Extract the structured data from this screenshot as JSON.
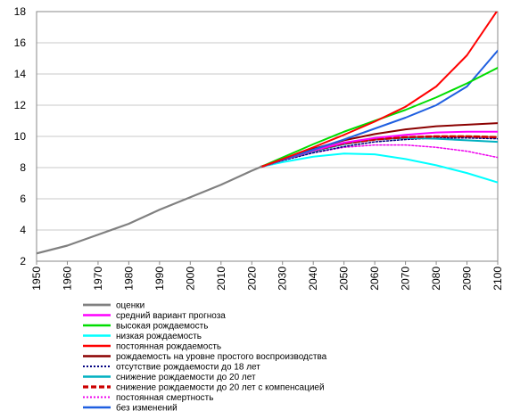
{
  "chart_data": {
    "type": "line",
    "title": "",
    "xlabel": "",
    "ylabel": "",
    "xlim": [
      1950,
      2100
    ],
    "ylim": [
      2,
      18
    ],
    "x_ticks": [
      "1950",
      "1960",
      "1970",
      "1980",
      "1990",
      "2000",
      "2010",
      "2020",
      "2030",
      "2040",
      "2050",
      "2060",
      "2070",
      "2080",
      "2090",
      "2100"
    ],
    "y_ticks": [
      "2",
      "4",
      "6",
      "8",
      "10",
      "12",
      "14",
      "16",
      "18"
    ],
    "grid": "horizontal",
    "legend_position": "bottom",
    "series": [
      {
        "name": "оценки",
        "color": "#808080",
        "dash": "solid",
        "width": 2.2,
        "points": [
          [
            1950,
            2.5
          ],
          [
            1960,
            3.0
          ],
          [
            1970,
            3.7
          ],
          [
            1980,
            4.4
          ],
          [
            1990,
            5.3
          ],
          [
            2000,
            6.1
          ],
          [
            2010,
            6.9
          ],
          [
            2020,
            7.8
          ],
          [
            2023,
            8.05
          ]
        ]
      },
      {
        "name": "средний вариант прогноза",
        "color": "#ff00ff",
        "dash": "solid",
        "width": 2,
        "points": [
          [
            2023,
            8.05
          ],
          [
            2030,
            8.5
          ],
          [
            2040,
            9.1
          ],
          [
            2050,
            9.6
          ],
          [
            2060,
            9.9
          ],
          [
            2070,
            10.1
          ],
          [
            2080,
            10.25
          ],
          [
            2090,
            10.3
          ],
          [
            2100,
            10.3
          ]
        ]
      },
      {
        "name": "высокая рождаемость",
        "color": "#00dd00",
        "dash": "solid",
        "width": 2,
        "points": [
          [
            2023,
            8.05
          ],
          [
            2030,
            8.65
          ],
          [
            2040,
            9.5
          ],
          [
            2050,
            10.3
          ],
          [
            2060,
            11.0
          ],
          [
            2070,
            11.7
          ],
          [
            2080,
            12.5
          ],
          [
            2090,
            13.4
          ],
          [
            2100,
            14.4
          ]
        ]
      },
      {
        "name": "низкая рождаемость",
        "color": "#00ffff",
        "dash": "solid",
        "width": 2,
        "points": [
          [
            2023,
            8.05
          ],
          [
            2030,
            8.35
          ],
          [
            2040,
            8.7
          ],
          [
            2050,
            8.9
          ],
          [
            2060,
            8.85
          ],
          [
            2070,
            8.55
          ],
          [
            2080,
            8.15
          ],
          [
            2090,
            7.65
          ],
          [
            2100,
            7.05
          ]
        ]
      },
      {
        "name": "постоянная рождаемость",
        "color": "#ff0000",
        "dash": "solid",
        "width": 2,
        "points": [
          [
            2023,
            8.05
          ],
          [
            2030,
            8.55
          ],
          [
            2040,
            9.3
          ],
          [
            2050,
            10.1
          ],
          [
            2060,
            10.95
          ],
          [
            2070,
            11.9
          ],
          [
            2080,
            13.2
          ],
          [
            2090,
            15.2
          ],
          [
            2100,
            18.1
          ]
        ]
      },
      {
        "name": "рождаемость на уровне простого воспроизводства",
        "color": "#8b0000",
        "dash": "solid",
        "width": 2,
        "points": [
          [
            2023,
            8.05
          ],
          [
            2030,
            8.55
          ],
          [
            2040,
            9.2
          ],
          [
            2050,
            9.75
          ],
          [
            2060,
            10.15
          ],
          [
            2070,
            10.45
          ],
          [
            2080,
            10.65
          ],
          [
            2090,
            10.75
          ],
          [
            2100,
            10.85
          ]
        ]
      },
      {
        "name": "отсутствие рождаемости до 18 лет",
        "color": "#000080",
        "dash": "2,2",
        "width": 1.5,
        "points": [
          [
            2023,
            8.05
          ],
          [
            2030,
            8.45
          ],
          [
            2040,
            8.95
          ],
          [
            2050,
            9.35
          ],
          [
            2060,
            9.65
          ],
          [
            2070,
            9.8
          ],
          [
            2080,
            9.9
          ],
          [
            2090,
            9.9
          ],
          [
            2100,
            9.85
          ]
        ]
      },
      {
        "name": "снижение рождаемости до 20 лет",
        "color": "#00b0c0",
        "dash": "solid",
        "width": 2,
        "points": [
          [
            2023,
            8.05
          ],
          [
            2030,
            8.5
          ],
          [
            2040,
            9.05
          ],
          [
            2050,
            9.5
          ],
          [
            2060,
            9.8
          ],
          [
            2070,
            9.9
          ],
          [
            2080,
            9.85
          ],
          [
            2090,
            9.75
          ],
          [
            2100,
            9.65
          ]
        ]
      },
      {
        "name": "снижение рождаемости до 20 лет с компенсацией",
        "color": "#cc0000",
        "dash": "6,3",
        "width": 2.6,
        "points": [
          [
            2023,
            8.05
          ],
          [
            2030,
            8.5
          ],
          [
            2040,
            9.1
          ],
          [
            2050,
            9.55
          ],
          [
            2060,
            9.8
          ],
          [
            2070,
            9.95
          ],
          [
            2080,
            10.0
          ],
          [
            2090,
            10.0
          ],
          [
            2100,
            9.95
          ]
        ]
      },
      {
        "name": "постоянная смертность",
        "color": "#ee00ee",
        "dash": "2,2",
        "width": 1.5,
        "points": [
          [
            2023,
            8.05
          ],
          [
            2030,
            8.45
          ],
          [
            2040,
            8.95
          ],
          [
            2050,
            9.3
          ],
          [
            2060,
            9.45
          ],
          [
            2070,
            9.45
          ],
          [
            2080,
            9.3
          ],
          [
            2090,
            9.05
          ],
          [
            2100,
            8.65
          ]
        ]
      },
      {
        "name": "без изменений",
        "color": "#1f5fe0",
        "dash": "solid",
        "width": 2,
        "points": [
          [
            2023,
            8.05
          ],
          [
            2030,
            8.5
          ],
          [
            2040,
            9.15
          ],
          [
            2050,
            9.8
          ],
          [
            2060,
            10.5
          ],
          [
            2070,
            11.2
          ],
          [
            2080,
            12.0
          ],
          [
            2090,
            13.2
          ],
          [
            2100,
            15.5
          ]
        ]
      }
    ]
  }
}
